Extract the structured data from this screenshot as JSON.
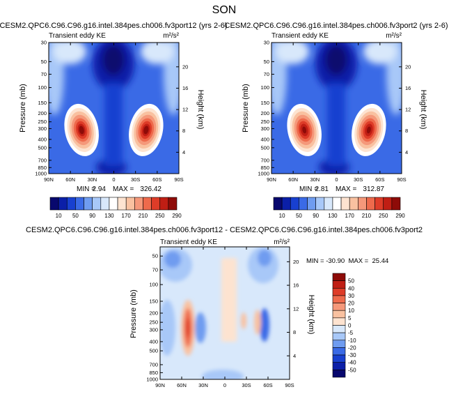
{
  "season_title": "SON",
  "colormap": {
    "abs": [
      "#08086e",
      "#0b1fa8",
      "#1840d0",
      "#3a6ae6",
      "#6f9cf0",
      "#a8c8f8",
      "#d8e8fb",
      "#ffffff",
      "#fde3d0",
      "#f9c1a0",
      "#f5987a",
      "#ee6a4c",
      "#de3c28",
      "#c01e14",
      "#8e0b08"
    ],
    "diff": [
      "#08086e",
      "#0b1fa8",
      "#1840d0",
      "#3a6ae6",
      "#6f9cf0",
      "#a8c8f8",
      "#d8e8fb",
      "#fde3d0",
      "#f9c1a0",
      "#f5987a",
      "#ee6a4c",
      "#de3c28",
      "#c01e14",
      "#8e0b08"
    ]
  },
  "chart_data": [
    {
      "type": "heatmap",
      "title": "CESM2.QPC6.C96.C96.g16.intel.384pes.ch006.fv3port12 (yrs 2-6)",
      "left_label": "Transient eddy KE",
      "units": "m²/s²",
      "ylabel": "Pressure (mb)",
      "ylabel_right": "Height (km)",
      "x_ticks": [
        "90N",
        "60N",
        "30N",
        "0",
        "30S",
        "60S",
        "90S"
      ],
      "y_ticks": [
        "30",
        "50",
        "70",
        "100",
        "150",
        "200",
        "250",
        "300",
        "400",
        "500",
        "700",
        "850",
        "1000"
      ],
      "y_ticks_right": [
        "20",
        "16",
        "12",
        "8",
        "4"
      ],
      "min_label": "MIN =",
      "min_value": "2.94",
      "max_label": "MAX =",
      "max_value": "326.42",
      "colorbar_labels": [
        "10",
        "50",
        "90",
        "130",
        "170",
        "210",
        "250",
        "290"
      ],
      "jet_peak": 326.42,
      "background_min": 2.94
    },
    {
      "type": "heatmap",
      "title": "CESM2.QPC6.C96.C96.g16.intel.384pes.ch006.fv3port2 (yrs 2-6)",
      "left_label": "Transient eddy KE",
      "units": "m²/s²",
      "ylabel": "Pressure (mb)",
      "ylabel_right": "Height (km)",
      "x_ticks": [
        "90N",
        "60N",
        "30N",
        "0",
        "30S",
        "60S",
        "90S"
      ],
      "y_ticks": [
        "30",
        "50",
        "70",
        "100",
        "150",
        "200",
        "250",
        "300",
        "400",
        "500",
        "700",
        "850",
        "1000"
      ],
      "y_ticks_right": [
        "20",
        "16",
        "12",
        "8",
        "4"
      ],
      "min_label": "MIN =",
      "min_value": "2.81",
      "max_label": "MAX =",
      "max_value": "312.87",
      "colorbar_labels": [
        "10",
        "50",
        "90",
        "130",
        "170",
        "210",
        "250",
        "290"
      ],
      "jet_peak": 312.87,
      "background_min": 2.81
    },
    {
      "type": "heatmap",
      "title": "CESM2.QPC6.C96.C96.g16.intel.384pes.ch006.fv3port12 - CESM2.QPC6.C96.C96.g16.intel.384pes.ch006.fv3port2",
      "left_label": "Transient eddy KE",
      "units": "m²/s²",
      "ylabel": "Pressure (mb)",
      "ylabel_right": "Height (km)",
      "x_ticks": [
        "90N",
        "60N",
        "30N",
        "0",
        "30S",
        "60S",
        "90S"
      ],
      "y_ticks": [
        "50",
        "70",
        "100",
        "150",
        "200",
        "250",
        "300",
        "400",
        "500",
        "700",
        "850",
        "1000"
      ],
      "y_ticks_right": [
        "20",
        "16",
        "12",
        "8",
        "4"
      ],
      "minmax_text": "MIN = -30.90  MAX =  25.44",
      "min_value": "-30.90",
      "max_value": "25.44",
      "colorbar_labels": [
        "50",
        "40",
        "30",
        "20",
        "10",
        "5",
        "0",
        "-5",
        "-10",
        "-20",
        "-30",
        "-40",
        "-50"
      ]
    }
  ]
}
